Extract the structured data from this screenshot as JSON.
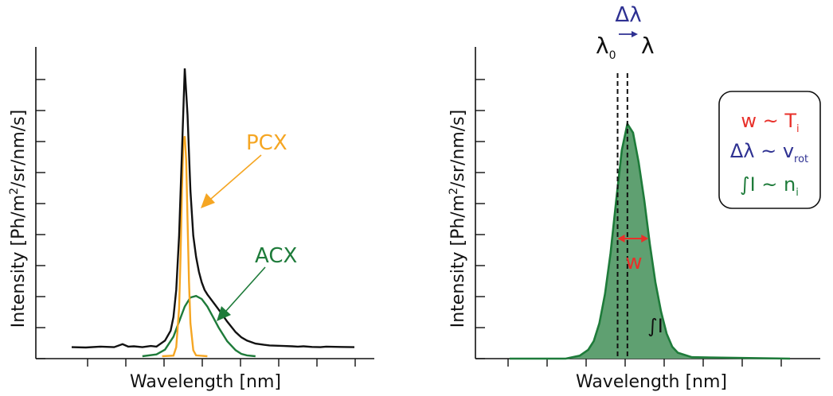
{
  "chart_data": [
    {
      "type": "line",
      "xlabel": "Wavelength [nm]",
      "ylabel_main": "Intensity [Ph/m",
      "ylabel_sup": "2",
      "ylabel_tail": "/sr/nm/s]",
      "annotations": {
        "pcx": "PCX",
        "acx": "ACX"
      },
      "x_range": [
        0,
        100
      ],
      "y_range": [
        0,
        100
      ],
      "series": [
        {
          "key": "total",
          "color": "#111111",
          "x": [
            0,
            5,
            10,
            15,
            18,
            20,
            22,
            25,
            28,
            30,
            33,
            35,
            36,
            37,
            38,
            39,
            40,
            41,
            42,
            43,
            44,
            45,
            46,
            47,
            48,
            50,
            52,
            55,
            58,
            60,
            62,
            65,
            68,
            70,
            72,
            75,
            78,
            80,
            82,
            85,
            88,
            90,
            95,
            100
          ],
          "y": [
            3.0,
            2.9,
            3.2,
            3.0,
            4.0,
            3.2,
            3.3,
            3.0,
            3.4,
            3.2,
            5.2,
            8.5,
            13.0,
            22.0,
            40.0,
            68.0,
            95.5,
            80.0,
            55.0,
            40.0,
            33.0,
            28.0,
            24.5,
            22.0,
            20.5,
            18.0,
            15.5,
            11.5,
            8.0,
            6.3,
            5.2,
            4.2,
            3.8,
            3.6,
            3.5,
            3.4,
            3.3,
            3.2,
            3.3,
            3.1,
            3.0,
            3.2,
            3.1,
            3.0
          ]
        },
        {
          "key": "pcx",
          "color": "#f5a623",
          "x": [
            32,
            36,
            37,
            38,
            38.5,
            39,
            39.5,
            40,
            40.5,
            41,
            41.5,
            42,
            43,
            44,
            48
          ],
          "y": [
            0,
            0.2,
            3.0,
            16.0,
            33.0,
            55.0,
            71.0,
            73.0,
            65.0,
            45.0,
            25.0,
            11.0,
            2.0,
            0.3,
            0
          ]
        },
        {
          "key": "acx",
          "color": "#1e7b3a",
          "x": [
            25,
            30,
            33,
            36,
            38,
            40,
            42,
            44,
            46,
            48,
            50,
            52,
            55,
            58,
            60,
            62,
            65
          ],
          "y": [
            0,
            0.6,
            2.2,
            6.5,
            11.5,
            16.5,
            19.5,
            20.0,
            19.0,
            16.5,
            13.0,
            9.5,
            5.0,
            2.0,
            0.8,
            0.3,
            0
          ]
        }
      ]
    },
    {
      "type": "area",
      "xlabel": "Wavelength [nm]",
      "ylabel_main": "Intensity [Ph/m",
      "ylabel_sup": "2",
      "ylabel_tail": "/sr/nm/s]",
      "annotations": {
        "lambda0": "λ",
        "lambda0_sub": "0",
        "lambda": "λ",
        "delta_lambda": "Δλ",
        "width": "w",
        "integral": "∫I"
      },
      "legend_box": {
        "line1_main": "w ~ T",
        "line1_sub": "i",
        "line2_main": "Δλ ~ v",
        "line2_sub": "rot",
        "line3_main": "∫I ~ n",
        "line3_sub": "i"
      },
      "x_range": [
        0,
        100
      ],
      "y_range": [
        0,
        100
      ],
      "center": 42,
      "lambda0_x": 38.5,
      "fwhm_arrow": {
        "x1": 38.5,
        "x2": 49.5
      },
      "series": [
        {
          "key": "line",
          "color": "#1e7b3a",
          "fill": "#5fa071",
          "x": [
            0,
            20,
            25,
            28,
            30,
            32,
            34,
            36,
            38,
            40,
            42,
            44,
            46,
            48,
            50,
            52,
            54,
            56,
            58,
            60,
            65,
            100
          ],
          "y": [
            0,
            0,
            1.0,
            3.0,
            6.0,
            12.0,
            22.0,
            36.0,
            54.0,
            71.0,
            80.0,
            77.0,
            67.0,
            54.0,
            39.0,
            26.0,
            16.0,
            8.5,
            4.0,
            2.0,
            0.5,
            0
          ]
        }
      ]
    }
  ]
}
